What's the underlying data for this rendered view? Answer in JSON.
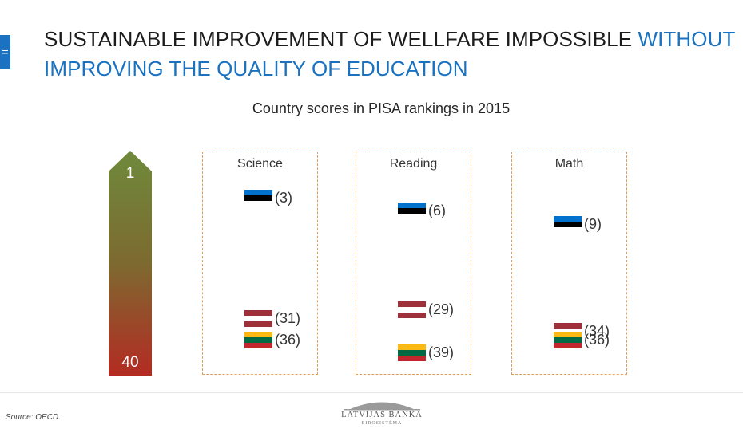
{
  "slide": {
    "tab_marker": "=",
    "title_main": "SUSTAINABLE IMPROVEMENT OF WELLFARE IMPOSSIBLE ",
    "title_accent": "WITHOUT IMPROVING THE QUALITY OF EDUCATION",
    "subtitle": "Country scores in PISA rankings in 2015"
  },
  "colors": {
    "accent": "#1a72c0",
    "arrow_top": "#6e8a3c",
    "arrow_bottom": "#b32b22",
    "panel_border": "#e0a05a",
    "estonia": [
      "#0072ce",
      "#000000",
      "#ffffff"
    ],
    "latvia": [
      "#9e3039",
      "#ffffff",
      "#9e3039"
    ],
    "lithuania": [
      "#fdb913",
      "#006a44",
      "#c1272d"
    ]
  },
  "scale": {
    "top_label": "1",
    "bottom_label": "40",
    "min_rank": 1,
    "max_rank": 40
  },
  "panels": [
    {
      "label": "Science",
      "entries": [
        {
          "country": "estonia",
          "rank": 3,
          "rank_text": "(3)"
        },
        {
          "country": "latvia",
          "rank": 31,
          "rank_text": "(31)"
        },
        {
          "country": "lithuania",
          "rank": 36,
          "rank_text": "(36)"
        }
      ]
    },
    {
      "label": "Reading",
      "entries": [
        {
          "country": "estonia",
          "rank": 6,
          "rank_text": "(6)"
        },
        {
          "country": "latvia",
          "rank": 29,
          "rank_text": "(29)"
        },
        {
          "country": "lithuania",
          "rank": 39,
          "rank_text": "(39)"
        }
      ]
    },
    {
      "label": "Math",
      "entries": [
        {
          "country": "estonia",
          "rank": 9,
          "rank_text": "(9)"
        },
        {
          "country": "latvia",
          "rank": 34,
          "rank_text": "(34)"
        },
        {
          "country": "lithuania",
          "rank": 36,
          "rank_text": "(36)"
        }
      ]
    }
  ],
  "footer": {
    "source": "Source: OECD.",
    "logo_name": "LATVIJAS BANKA",
    "logo_sub": "EIROSISTĒMA"
  }
}
